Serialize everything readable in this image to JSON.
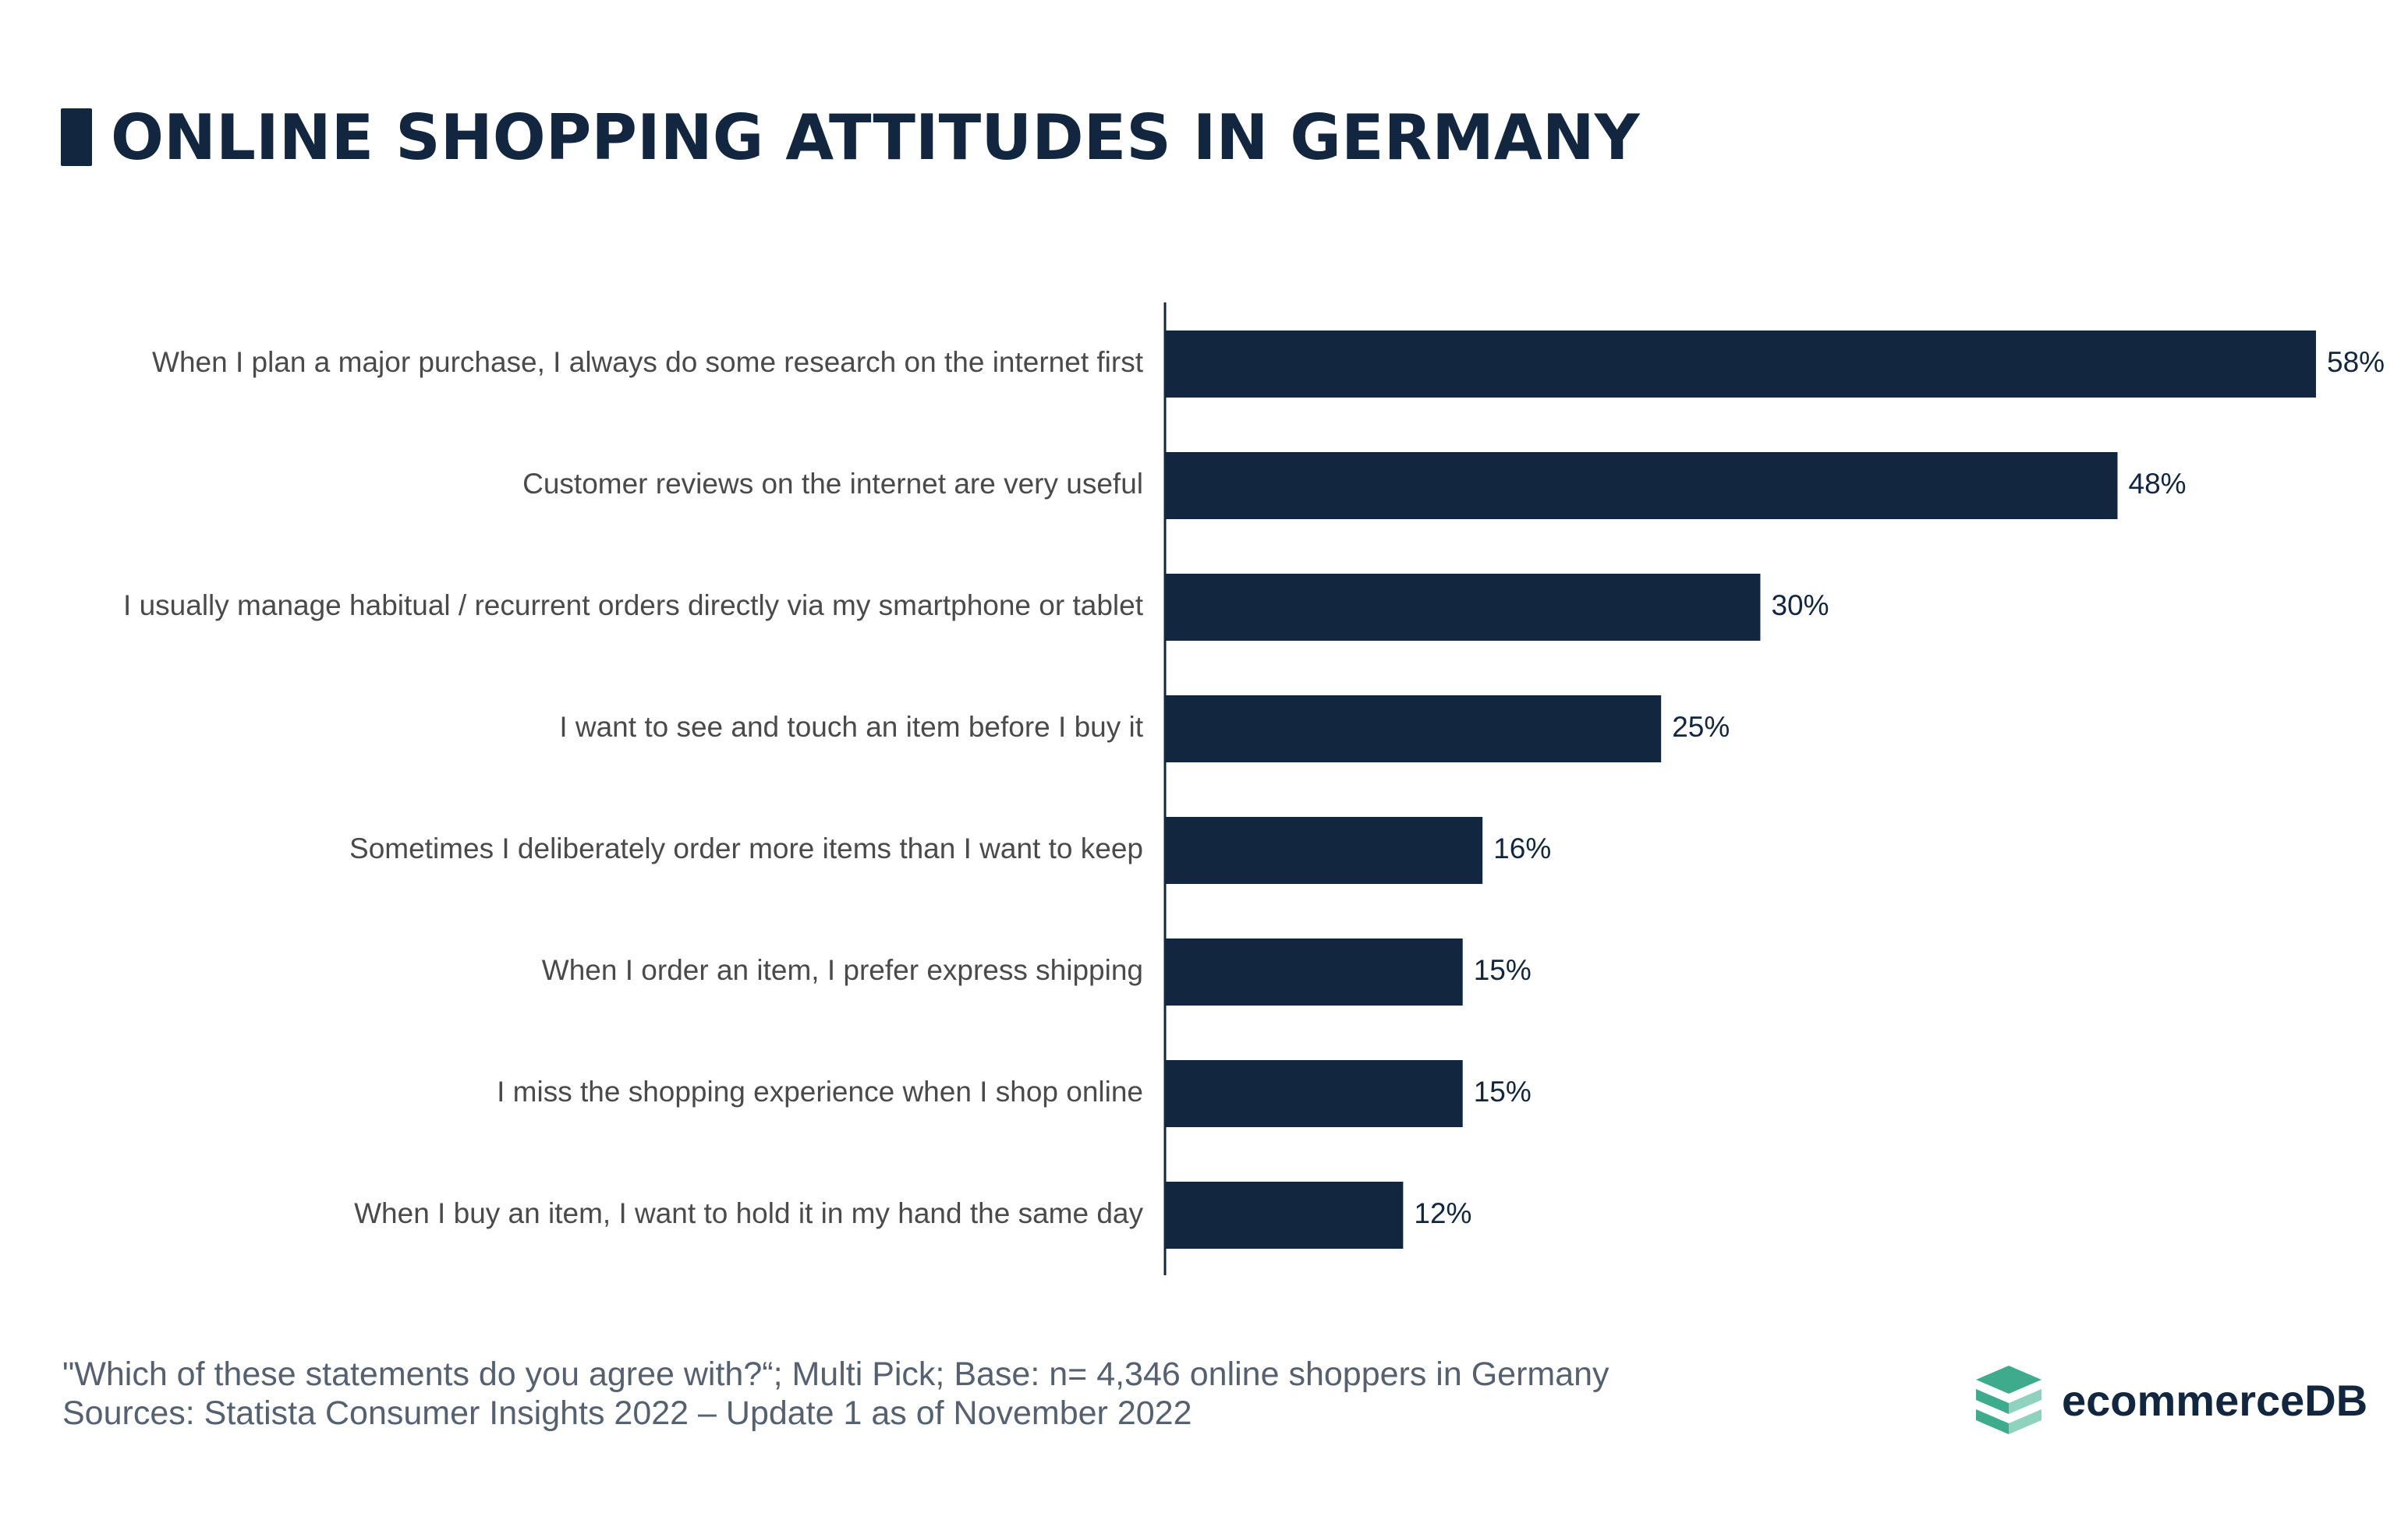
{
  "title": "ONLINE SHOPPING ATTITUDES IN GERMANY",
  "colors": {
    "bar": "#12263f",
    "title": "#12263f",
    "category_text": "#4a4a4a",
    "value_text": "#12263f",
    "axis": "#12263f",
    "footnote_text": "#556170",
    "brand_text": "#12263f",
    "logo_green": "#3dab8c",
    "logo_green_light": "#8fd3bf"
  },
  "chart_data": {
    "type": "bar",
    "orientation": "horizontal",
    "title": "ONLINE SHOPPING ATTITUDES IN GERMANY",
    "categories": [
      "When I plan a major purchase, I always do some research on the internet first",
      "Customer reviews on the internet are very useful",
      "I usually manage habitual / recurrent orders directly via my smartphone or tablet",
      "I want to see and touch an item before I buy it",
      "Sometimes I deliberately order more items than I want to keep",
      "When I order an item, I prefer express shipping",
      "I miss the shopping experience when I shop online",
      "When I buy an item, I want to hold it in my hand the same day"
    ],
    "values": [
      58,
      48,
      30,
      25,
      16,
      15,
      15,
      12
    ],
    "value_labels": [
      "58%",
      "48%",
      "30%",
      "25%",
      "16%",
      "15%",
      "15%",
      "12%"
    ],
    "unit": "%",
    "xlim": [
      0,
      58
    ],
    "xlabel": "",
    "ylabel": "",
    "grid": false,
    "legend": false
  },
  "footnote": {
    "line1": "\"Which of these statements do you agree with?“; Multi Pick; Base: n= 4,346 online shoppers in Germany",
    "line2": "Sources: Statista Consumer Insights 2022 – Update 1 as of November 2022"
  },
  "brand": {
    "name": "ecommerceDB",
    "logo_icon": "stacked-layers-icon"
  }
}
